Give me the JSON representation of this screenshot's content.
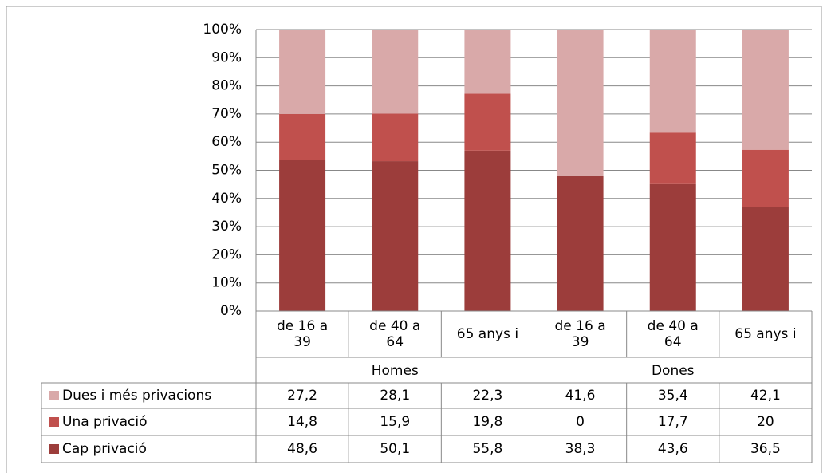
{
  "chart_data": {
    "type": "bar",
    "stacking": "percent",
    "groups": [
      {
        "name": "Homes",
        "categories": [
          "de 16 a 39",
          "de 40 a 64",
          "65 anys i"
        ]
      },
      {
        "name": "Dones",
        "categories": [
          "de 16 a 39",
          "de 40 a 64",
          "65 anys i"
        ]
      }
    ],
    "series": [
      {
        "name": "Cap privació",
        "color": "#9c3d3b",
        "values": [
          48.6,
          50.1,
          55.8,
          38.3,
          43.6,
          36.5
        ],
        "value_labels": [
          "48,6",
          "50,1",
          "55,8",
          "38,3",
          "43,6",
          "36,5"
        ]
      },
      {
        "name": "Una privació",
        "color": "#c0504d",
        "values": [
          14.8,
          15.9,
          19.8,
          0,
          17.7,
          20
        ],
        "value_labels": [
          "14,8",
          "15,9",
          "19,8",
          "0",
          "17,7",
          "20"
        ]
      },
      {
        "name": "Dues i més privacions",
        "color": "#d9a9a9",
        "values": [
          27.2,
          28.1,
          22.3,
          41.6,
          35.4,
          42.1
        ],
        "value_labels": [
          "27,2",
          "28,1",
          "22,3",
          "41,6",
          "35,4",
          "42,1"
        ]
      }
    ],
    "ylim": [
      0,
      100
    ],
    "yticks": [
      {
        "value": 0,
        "label": "0%"
      },
      {
        "value": 10,
        "label": "10%"
      },
      {
        "value": 20,
        "label": "20%"
      },
      {
        "value": 30,
        "label": "30%"
      },
      {
        "value": 40,
        "label": "40%"
      },
      {
        "value": 50,
        "label": "50%"
      },
      {
        "value": 60,
        "label": "60%"
      },
      {
        "value": 70,
        "label": "70%"
      },
      {
        "value": 80,
        "label": "80%"
      },
      {
        "value": 90,
        "label": "90%"
      },
      {
        "value": 100,
        "label": "100%"
      }
    ],
    "grid": true
  }
}
